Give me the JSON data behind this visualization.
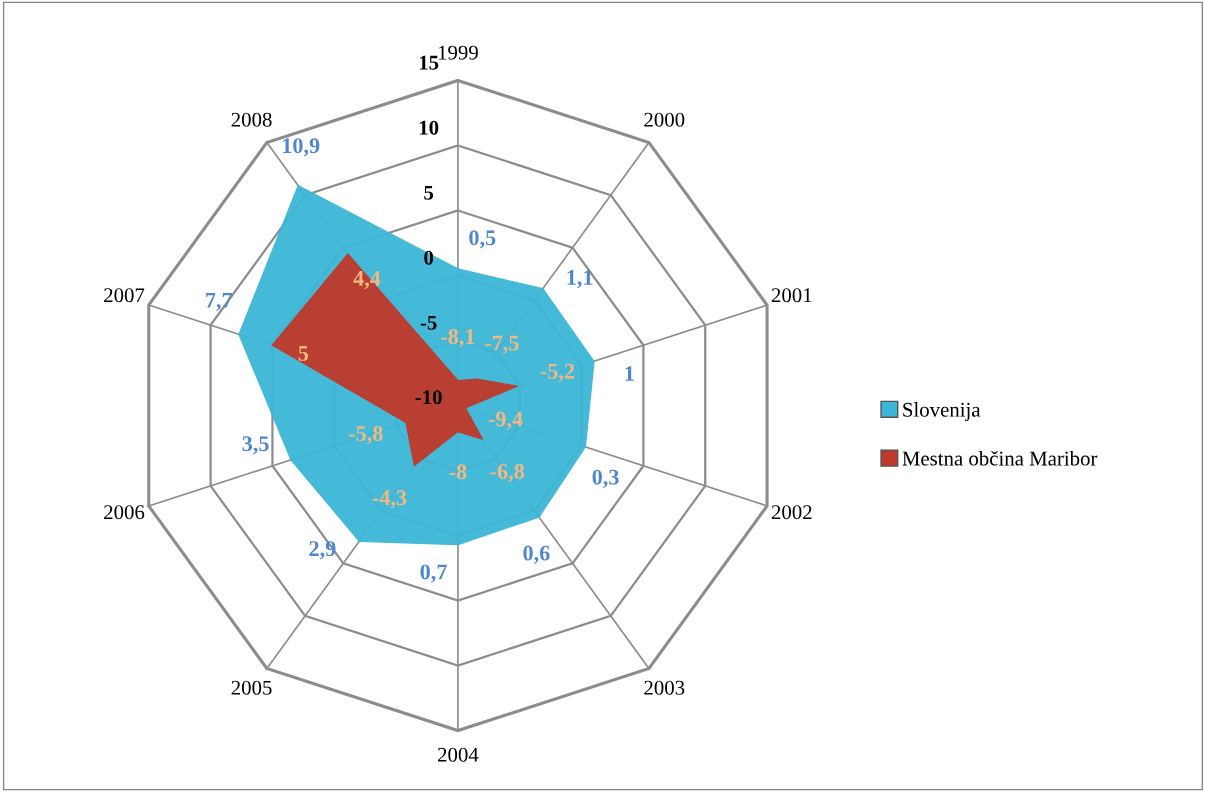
{
  "chart_data": {
    "type": "radar",
    "categories": [
      "1999",
      "2000",
      "2001",
      "2002",
      "2003",
      "2004",
      "2005",
      "2006",
      "2007",
      "2008"
    ],
    "ylim": [
      -10,
      15
    ],
    "yticks": [
      -10,
      -5,
      0,
      5,
      10,
      15
    ],
    "grid": true,
    "legend": "right",
    "data_labels": true,
    "series": [
      {
        "name": "Slovenija",
        "color": "#3cb6d6",
        "values": [
          0.5,
          1.1,
          1,
          0.3,
          0.6,
          0.7,
          2.9,
          3.5,
          7.7,
          10.9
        ],
        "value_labels": [
          "0,5",
          "1,1",
          "1",
          "0,3",
          "0,6",
          "0,7",
          "2,9",
          "3,5",
          "7,7",
          "10,9"
        ]
      },
      {
        "name": "Mestna občina Maribor",
        "color": "#c0392b",
        "values": [
          -8.1,
          -7.5,
          -5.2,
          -9.4,
          -6.8,
          -8,
          -4.3,
          -5.8,
          5,
          4.4
        ],
        "value_labels": [
          "-8,1",
          "-7,5",
          "-5,2",
          "-9,4",
          "-6,8",
          "-8",
          "-4,3",
          "-5,8",
          "5",
          "4,4"
        ]
      }
    ]
  }
}
